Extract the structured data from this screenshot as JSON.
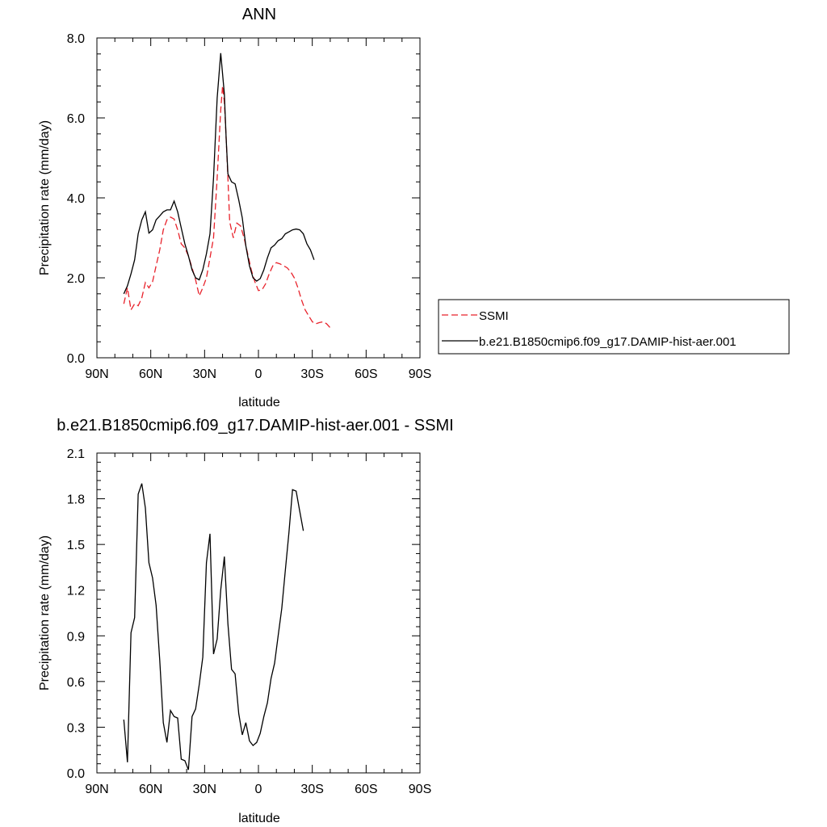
{
  "chart_data": [
    {
      "type": "line",
      "title": "ANN",
      "xlabel": "latitude",
      "ylabel": "Precipitation rate (mm/day)",
      "xlim": [
        90,
        -90
      ],
      "ylim": [
        0.0,
        8.0
      ],
      "x_ticks": [
        90,
        60,
        30,
        0,
        -30,
        -60,
        -90
      ],
      "x_tick_labels": [
        "90N",
        "60N",
        "30N",
        "0",
        "30S",
        "60S",
        "90S"
      ],
      "y_ticks": [
        0,
        2,
        4,
        6,
        8
      ],
      "y_tick_labels": [
        "0.0",
        "2.0",
        "4.0",
        "6.0",
        "8.0"
      ],
      "legend_position": "right",
      "series": [
        {
          "name": "SSMI",
          "style": "dashed",
          "color": "#e8222b",
          "points": [
            [
              75,
              1.35
            ],
            [
              73,
              1.75
            ],
            [
              71,
              1.2
            ],
            [
              69,
              1.35
            ],
            [
              67,
              1.3
            ],
            [
              65,
              1.5
            ],
            [
              63,
              1.88
            ],
            [
              61,
              1.75
            ],
            [
              59,
              1.9
            ],
            [
              57,
              2.3
            ],
            [
              55,
              2.7
            ],
            [
              53,
              3.2
            ],
            [
              51,
              3.45
            ],
            [
              49,
              3.52
            ],
            [
              47,
              3.47
            ],
            [
              45,
              3.2
            ],
            [
              43,
              2.85
            ],
            [
              41,
              2.75
            ],
            [
              39,
              2.55
            ],
            [
              37,
              2.25
            ],
            [
              35,
              1.95
            ],
            [
              33,
              1.55
            ],
            [
              31,
              1.75
            ],
            [
              29,
              2.0
            ],
            [
              27,
              2.5
            ],
            [
              25,
              3.0
            ],
            [
              23,
              4.5
            ],
            [
              21,
              6.2
            ],
            [
              20,
              6.8
            ],
            [
              19,
              6.4
            ],
            [
              18,
              5.5
            ],
            [
              17,
              4.5
            ],
            [
              16,
              3.4
            ],
            [
              14,
              3.0
            ],
            [
              12,
              3.37
            ],
            [
              10,
              3.3
            ],
            [
              8,
              3.0
            ],
            [
              6,
              2.6
            ],
            [
              4,
              2.2
            ],
            [
              2,
              1.9
            ],
            [
              0,
              1.68
            ],
            [
              -2,
              1.7
            ],
            [
              -4,
              1.85
            ],
            [
              -6,
              2.1
            ],
            [
              -8,
              2.3
            ],
            [
              -10,
              2.38
            ],
            [
              -12,
              2.35
            ],
            [
              -14,
              2.3
            ],
            [
              -16,
              2.25
            ],
            [
              -18,
              2.15
            ],
            [
              -20,
              2.0
            ],
            [
              -22,
              1.75
            ],
            [
              -24,
              1.45
            ],
            [
              -26,
              1.2
            ],
            [
              -28,
              1.05
            ],
            [
              -30,
              0.9
            ],
            [
              -32,
              0.85
            ],
            [
              -34,
              0.88
            ],
            [
              -36,
              0.9
            ],
            [
              -38,
              0.85
            ],
            [
              -40,
              0.75
            ]
          ]
        },
        {
          "name": "b.e21.B1850cmip6.f09_g17.DAMIP-hist-aer.001",
          "style": "solid",
          "color": "#000000",
          "points": [
            [
              75,
              1.6
            ],
            [
              73,
              1.8
            ],
            [
              71,
              2.1
            ],
            [
              69,
              2.45
            ],
            [
              67,
              3.1
            ],
            [
              65,
              3.45
            ],
            [
              63,
              3.65
            ],
            [
              61,
              3.12
            ],
            [
              59,
              3.2
            ],
            [
              57,
              3.45
            ],
            [
              55,
              3.55
            ],
            [
              53,
              3.65
            ],
            [
              51,
              3.7
            ],
            [
              49,
              3.7
            ],
            [
              47,
              3.92
            ],
            [
              45,
              3.65
            ],
            [
              43,
              3.25
            ],
            [
              41,
              2.85
            ],
            [
              39,
              2.55
            ],
            [
              37,
              2.2
            ],
            [
              35,
              2.0
            ],
            [
              33,
              1.95
            ],
            [
              31,
              2.2
            ],
            [
              29,
              2.6
            ],
            [
              27,
              3.1
            ],
            [
              25,
              4.5
            ],
            [
              23,
              6.5
            ],
            [
              21,
              7.62
            ],
            [
              19,
              6.6
            ],
            [
              18,
              5.5
            ],
            [
              17,
              4.6
            ],
            [
              15,
              4.4
            ],
            [
              13,
              4.35
            ],
            [
              11,
              3.95
            ],
            [
              9,
              3.5
            ],
            [
              7,
              2.8
            ],
            [
              5,
              2.3
            ],
            [
              3,
              2.0
            ],
            [
              1,
              1.92
            ],
            [
              -1,
              1.98
            ],
            [
              -3,
              2.2
            ],
            [
              -5,
              2.5
            ],
            [
              -7,
              2.75
            ],
            [
              -9,
              2.82
            ],
            [
              -11,
              2.93
            ],
            [
              -13,
              2.98
            ],
            [
              -15,
              3.1
            ],
            [
              -17,
              3.15
            ],
            [
              -19,
              3.2
            ],
            [
              -21,
              3.22
            ],
            [
              -23,
              3.2
            ],
            [
              -25,
              3.1
            ],
            [
              -27,
              2.85
            ],
            [
              -29,
              2.7
            ],
            [
              -31,
              2.45
            ]
          ]
        }
      ]
    },
    {
      "type": "line",
      "title": "b.e21.B1850cmip6.f09_g17.DAMIP-hist-aer.001 - SSMI",
      "xlabel": "latitude",
      "ylabel": "Precipitation rate (mm/day)",
      "xlim": [
        90,
        -90
      ],
      "ylim": [
        0.0,
        2.1
      ],
      "x_ticks": [
        90,
        60,
        30,
        0,
        -30,
        -60,
        -90
      ],
      "x_tick_labels": [
        "90N",
        "60N",
        "30N",
        "0",
        "30S",
        "60S",
        "90S"
      ],
      "y_ticks": [
        0,
        0.3,
        0.6,
        0.9,
        1.2,
        1.5,
        1.8,
        2.1
      ],
      "y_tick_labels": [
        "0.0",
        "0.3",
        "0.6",
        "0.9",
        "1.2",
        "1.5",
        "1.8",
        "2.1"
      ],
      "series": [
        {
          "style": "solid",
          "color": "#000000",
          "points": [
            [
              75,
              0.35
            ],
            [
              73,
              0.07
            ],
            [
              71,
              0.92
            ],
            [
              69,
              1.02
            ],
            [
              67,
              1.83
            ],
            [
              65,
              1.9
            ],
            [
              63,
              1.74
            ],
            [
              61,
              1.38
            ],
            [
              59,
              1.28
            ],
            [
              57,
              1.1
            ],
            [
              55,
              0.74
            ],
            [
              53,
              0.33
            ],
            [
              51,
              0.2
            ],
            [
              49,
              0.41
            ],
            [
              47,
              0.37
            ],
            [
              45,
              0.36
            ],
            [
              43,
              0.09
            ],
            [
              41,
              0.08
            ],
            [
              39,
              0.02
            ],
            [
              37,
              0.37
            ],
            [
              35,
              0.42
            ],
            [
              33,
              0.58
            ],
            [
              31,
              0.76
            ],
            [
              29,
              1.38
            ],
            [
              27,
              1.57
            ],
            [
              25,
              0.78
            ],
            [
              23,
              0.88
            ],
            [
              21,
              1.2
            ],
            [
              19,
              1.42
            ],
            [
              17,
              0.98
            ],
            [
              15,
              0.68
            ],
            [
              13,
              0.65
            ],
            [
              11,
              0.39
            ],
            [
              9,
              0.25
            ],
            [
              7,
              0.33
            ],
            [
              5,
              0.21
            ],
            [
              3,
              0.18
            ],
            [
              1,
              0.2
            ],
            [
              -1,
              0.26
            ],
            [
              -3,
              0.37
            ],
            [
              -5,
              0.46
            ],
            [
              -7,
              0.62
            ],
            [
              -9,
              0.72
            ],
            [
              -11,
              0.9
            ],
            [
              -13,
              1.08
            ],
            [
              -15,
              1.33
            ],
            [
              -17,
              1.58
            ],
            [
              -19,
              1.86
            ],
            [
              -21,
              1.85
            ],
            [
              -23,
              1.72
            ],
            [
              -25,
              1.59
            ]
          ]
        }
      ]
    }
  ]
}
